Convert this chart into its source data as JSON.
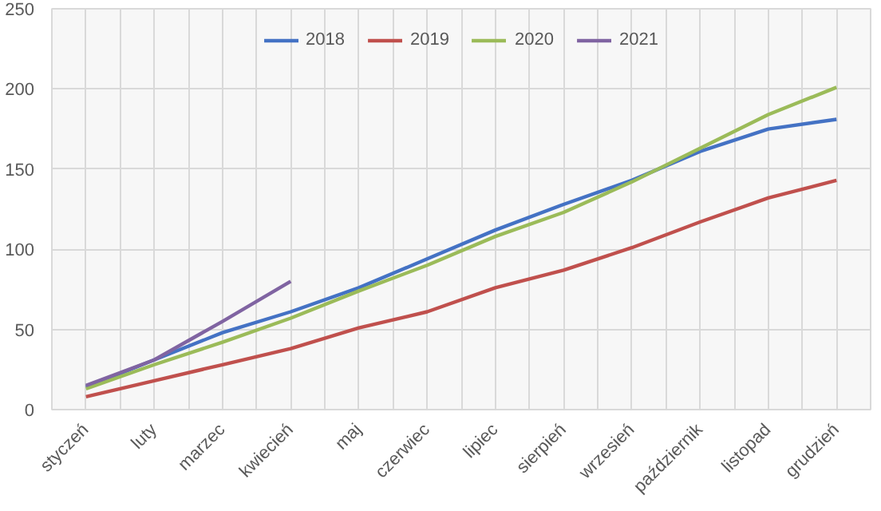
{
  "chart_data": {
    "type": "line",
    "categories": [
      "styczeń",
      "luty",
      "marzec",
      "kwiecień",
      "maj",
      "czerwiec",
      "lipiec",
      "sierpień",
      "wrzesień",
      "październik",
      "listopad",
      "grudzień"
    ],
    "series": [
      {
        "name": "2018",
        "color": "#4472c4",
        "values": [
          14,
          31,
          48,
          61,
          76,
          94,
          112,
          128,
          143,
          161,
          175,
          181
        ]
      },
      {
        "name": "2019",
        "color": "#c0504d",
        "values": [
          8,
          18,
          28,
          38,
          51,
          61,
          76,
          87,
          101,
          117,
          132,
          143
        ]
      },
      {
        "name": "2020",
        "color": "#9bbb59",
        "values": [
          13,
          28,
          42,
          57,
          74,
          90,
          108,
          123,
          142,
          163,
          184,
          201
        ]
      },
      {
        "name": "2021",
        "color": "#8064a2",
        "values": [
          15,
          31,
          55,
          80,
          null,
          null,
          null,
          null,
          null,
          null,
          null,
          null
        ]
      }
    ],
    "ylim": [
      0,
      250
    ],
    "yticks": [
      0,
      50,
      100,
      150,
      200,
      250
    ],
    "grid": true,
    "legend": "top",
    "marker": "none",
    "line_style": "solid"
  }
}
